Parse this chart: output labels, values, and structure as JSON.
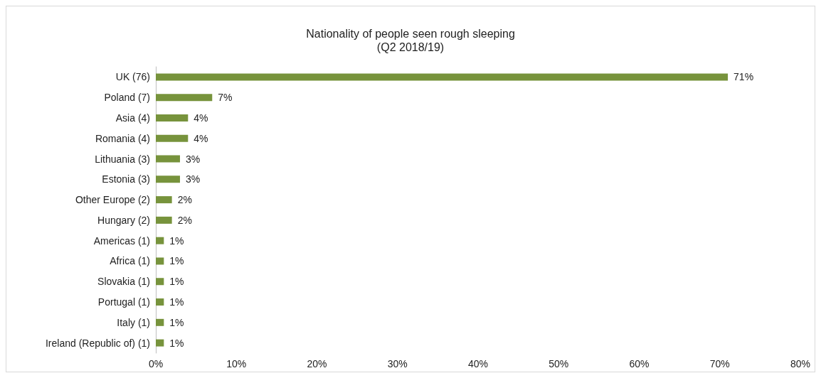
{
  "chart_data": {
    "type": "bar",
    "orientation": "horizontal",
    "title": "Nationality of people seen rough sleeping\n(Q2 2018/19)",
    "categories": [
      "UK (76)",
      "Poland (7)",
      "Asia (4)",
      "Romania (4)",
      "Lithuania (3)",
      "Estonia (3)",
      "Other Europe (2)",
      "Hungary (2)",
      "Americas (1)",
      "Africa (1)",
      "Slovakia (1)",
      "Portugal (1)",
      "Italy (1)",
      "Ireland (Republic of) (1)"
    ],
    "values": [
      71,
      7,
      4,
      4,
      3,
      3,
      2,
      2,
      1,
      1,
      1,
      1,
      1,
      1
    ],
    "value_labels": [
      "71%",
      "7%",
      "4%",
      "4%",
      "3%",
      "3%",
      "2%",
      "2%",
      "1%",
      "1%",
      "1%",
      "1%",
      "1%",
      "1%"
    ],
    "color": "#77933c",
    "xlim": [
      0,
      80
    ],
    "xticks": [
      {
        "value": 0,
        "label": "0%"
      },
      {
        "value": 10,
        "label": "10%"
      },
      {
        "value": 20,
        "label": "20%"
      },
      {
        "value": 30,
        "label": "30%"
      },
      {
        "value": 40,
        "label": "40%"
      },
      {
        "value": 50,
        "label": "50%"
      },
      {
        "value": 60,
        "label": "60%"
      },
      {
        "value": 70,
        "label": "70%"
      },
      {
        "value": 80,
        "label": "80%"
      }
    ],
    "grid": false
  }
}
